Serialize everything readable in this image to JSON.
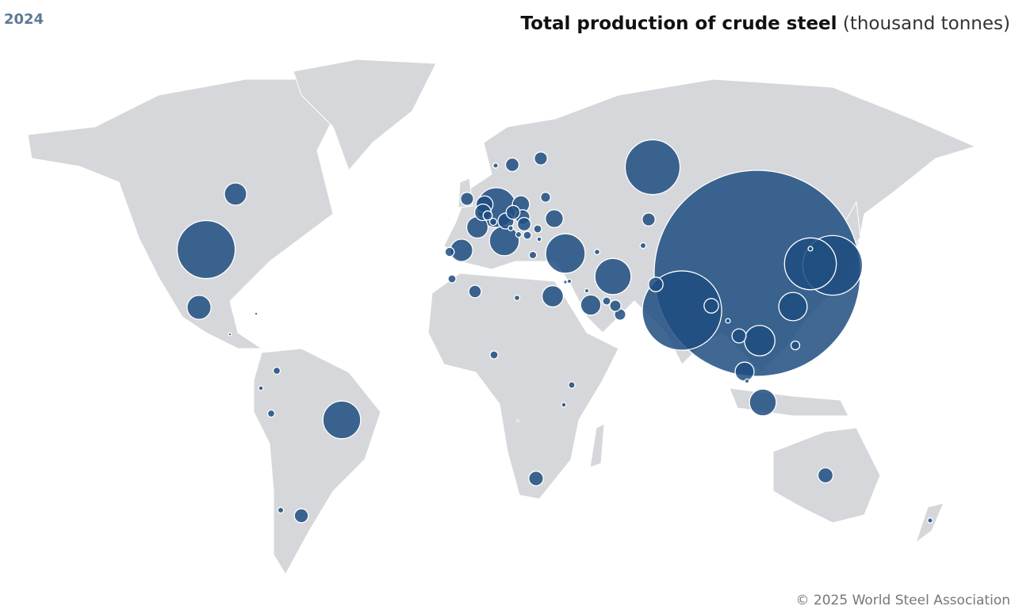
{
  "chart_data": {
    "type": "bubble-map",
    "year_label": "2024",
    "title": "Total production of crude steel",
    "subtitle": "(thousand tonnes)",
    "source": "© 2025 World Steel Association",
    "color": "#1f4e80",
    "values": [
      1005000,
      149000,
      84000,
      79500,
      71000,
      63500,
      37200,
      36900,
      33700,
      31000,
      22100,
      21000,
      19000,
      17000,
      13600,
      11900,
      11700,
      10800,
      10700,
      9700,
      8500,
      7600,
      7000,
      6800,
      6500,
      6000,
      5400,
      5000,
      5000,
      5000,
      5000,
      4700,
      4600,
      4500,
      4300,
      4300,
      4000,
      4000,
      4000,
      3700,
      3000,
      3000,
      2300,
      2000,
      2000,
      1800,
      1500,
      1500,
      1500,
      1500,
      1500,
      1300,
      1200,
      1200,
      1200,
      1000,
      800,
      800,
      800,
      700,
      700,
      600,
      600,
      600,
      500,
      500,
      500,
      500,
      500,
      400,
      400,
      400,
      300,
      200,
      200,
      100
    ]
  }
}
